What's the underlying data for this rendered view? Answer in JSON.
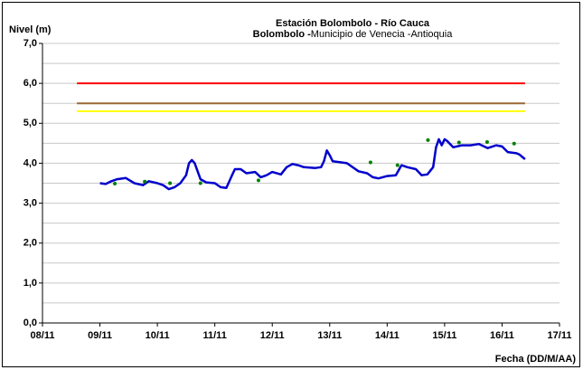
{
  "chart_data": {
    "type": "line",
    "title": "Estación Bolombolo - Río Cauca",
    "subtitle_bold": "Bolombolo -",
    "subtitle": "Municipio de Venecia -Antioquia",
    "ylabel": "Nivel (m)",
    "xlabel": "Fecha (DD/M/AA)",
    "xlim": [
      8,
      17
    ],
    "xticks": [
      {
        "value": 8,
        "label": "08/11"
      },
      {
        "value": 9,
        "label": "09/11"
      },
      {
        "value": 10,
        "label": "10/11"
      },
      {
        "value": 11,
        "label": "11/11"
      },
      {
        "value": 12,
        "label": "12/11"
      },
      {
        "value": 13,
        "label": "13/11"
      },
      {
        "value": 14,
        "label": "14/11"
      },
      {
        "value": 15,
        "label": "15/11"
      },
      {
        "value": 16,
        "label": "16/11"
      },
      {
        "value": 17,
        "label": "17/11"
      }
    ],
    "ylim": [
      0,
      7
    ],
    "yticks": [
      {
        "value": 0,
        "label": "0,0"
      },
      {
        "value": 1,
        "label": "1,0"
      },
      {
        "value": 2,
        "label": "2,0"
      },
      {
        "value": 3,
        "label": "3,0"
      },
      {
        "value": 4,
        "label": "4,0"
      },
      {
        "value": 5,
        "label": "5,0"
      },
      {
        "value": 6,
        "label": "6,0"
      },
      {
        "value": 7,
        "label": "7,0"
      }
    ],
    "minor_yticks": [
      0.5,
      1.5,
      2.5,
      3.5,
      4.5,
      5.5,
      6.5
    ],
    "grid": true,
    "thresholds": [
      {
        "value": 6.0,
        "color": "#ff0000",
        "x": [
          8.6,
          16.4
        ]
      },
      {
        "value": 5.5,
        "color": "#996633",
        "x": [
          8.6,
          16.4
        ]
      },
      {
        "value": 5.3,
        "color": "#ffff00",
        "x": [
          8.6,
          16.4
        ]
      }
    ],
    "series": [
      {
        "color": "#0000cc",
        "x": [
          9.0,
          9.1,
          9.2,
          9.3,
          9.45,
          9.6,
          9.75,
          9.85,
          10.0,
          10.1,
          10.2,
          10.3,
          10.4,
          10.5,
          10.55,
          10.6,
          10.65,
          10.75,
          10.85,
          11.0,
          11.1,
          11.2,
          11.3,
          11.35,
          11.45,
          11.55,
          11.7,
          11.8,
          11.9,
          12.0,
          12.15,
          12.25,
          12.35,
          12.45,
          12.55,
          12.75,
          12.85,
          12.9,
          12.95,
          13.0,
          13.05,
          13.2,
          13.3,
          13.5,
          13.65,
          13.75,
          13.85,
          14.0,
          14.15,
          14.25,
          14.35,
          14.5,
          14.6,
          14.7,
          14.8,
          14.85,
          14.9,
          14.95,
          15.0,
          15.05,
          15.15,
          15.3,
          15.45,
          15.6,
          15.75,
          15.9,
          16.0,
          16.1,
          16.25,
          16.3,
          16.4
        ],
        "values": [
          3.5,
          3.48,
          3.55,
          3.6,
          3.63,
          3.5,
          3.45,
          3.55,
          3.5,
          3.45,
          3.35,
          3.4,
          3.5,
          3.7,
          4.0,
          4.08,
          4.0,
          3.6,
          3.52,
          3.5,
          3.4,
          3.38,
          3.7,
          3.85,
          3.85,
          3.75,
          3.78,
          3.65,
          3.7,
          3.78,
          3.72,
          3.9,
          3.98,
          3.95,
          3.9,
          3.88,
          3.9,
          4.05,
          4.32,
          4.2,
          4.05,
          4.02,
          4.0,
          3.8,
          3.75,
          3.65,
          3.62,
          3.68,
          3.7,
          3.95,
          3.9,
          3.85,
          3.7,
          3.72,
          3.9,
          4.4,
          4.6,
          4.45,
          4.6,
          4.55,
          4.4,
          4.45,
          4.45,
          4.48,
          4.38,
          4.45,
          4.42,
          4.28,
          4.25,
          4.22,
          4.1
        ]
      },
      {
        "type": "scatter",
        "color": "#008000",
        "x": [
          9.26,
          9.78,
          10.22,
          10.75,
          11.76,
          13.71,
          14.18,
          14.71,
          15.25,
          15.74,
          16.21
        ],
        "values": [
          3.49,
          3.54,
          3.5,
          3.5,
          3.57,
          4.02,
          3.95,
          4.58,
          4.52,
          4.53,
          4.49
        ]
      }
    ]
  }
}
